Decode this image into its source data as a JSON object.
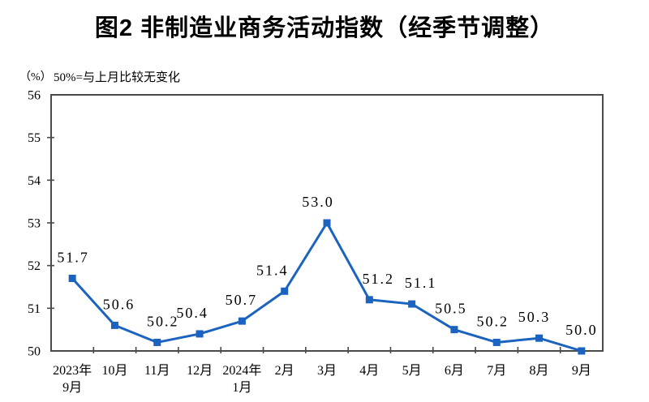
{
  "chart_data": {
    "type": "line",
    "title": "图2 非制造业商务活动指数（经季节调整）",
    "unit_label": "（%）",
    "note": "50%=与上月比较无变化",
    "categories": [
      "2023年9月",
      "10月",
      "11月",
      "12月",
      "2024年1月",
      "2月",
      "3月",
      "4月",
      "5月",
      "6月",
      "7月",
      "8月",
      "9月"
    ],
    "category_lines": [
      [
        "2023年",
        "9月"
      ],
      [
        "10月"
      ],
      [
        "11月"
      ],
      [
        "12月"
      ],
      [
        "2024年",
        "1月"
      ],
      [
        "2月"
      ],
      [
        "3月"
      ],
      [
        "4月"
      ],
      [
        "5月"
      ],
      [
        "6月"
      ],
      [
        "7月"
      ],
      [
        "8月"
      ],
      [
        "9月"
      ]
    ],
    "values": [
      51.7,
      50.6,
      50.2,
      50.4,
      50.7,
      51.4,
      53.0,
      51.2,
      51.1,
      50.5,
      50.2,
      50.3,
      50.0
    ],
    "data_labels": [
      "51.7",
      "50.6",
      "50.2",
      "50.4",
      "50.7",
      "51.4",
      "53.0",
      "51.2",
      "51.1",
      "50.5",
      "50.2",
      "50.3",
      "50.0"
    ],
    "label_dx": [
      1,
      5,
      7,
      -9,
      -1,
      -15,
      -11,
      11,
      11,
      -4,
      -5,
      -6,
      0
    ],
    "ylim": [
      50,
      56
    ],
    "yticks": [
      50,
      51,
      52,
      53,
      54,
      55,
      56
    ],
    "xlabel": "",
    "ylabel": "（%）",
    "grid": false,
    "legend": "none",
    "marker": "square",
    "line_color": "#1B63BE",
    "axis_color": "#4A4A4A",
    "text_color": "#000000"
  }
}
